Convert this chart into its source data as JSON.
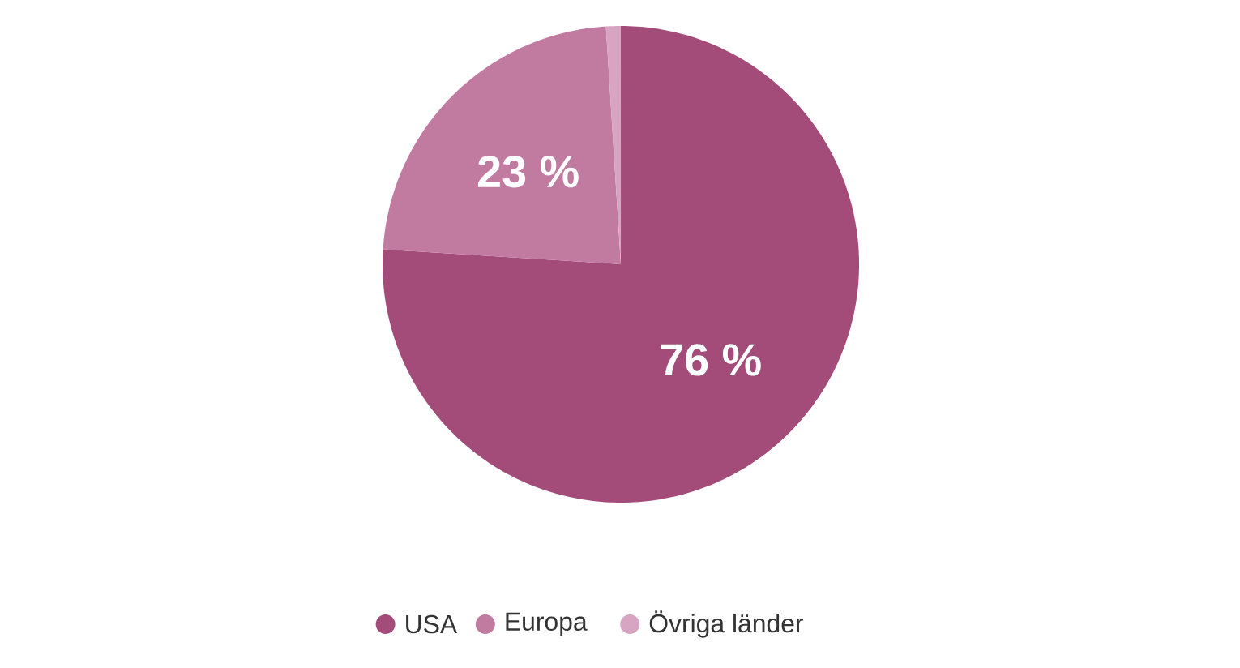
{
  "chart_data": {
    "type": "pie",
    "categories": [
      "USA",
      "Europa",
      "Övriga länder"
    ],
    "values": [
      76,
      23,
      1
    ],
    "colors": [
      "#a44c79",
      "#c17aa0",
      "#d7a5c2"
    ],
    "value_labels": [
      "76 %",
      "23 %",
      null
    ],
    "legend": "bottom"
  }
}
